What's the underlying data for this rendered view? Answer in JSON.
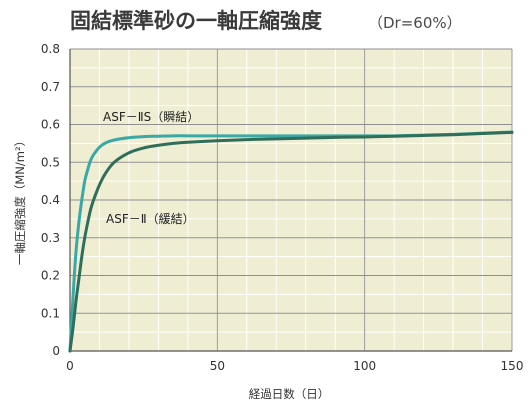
{
  "chart_data": {
    "type": "line",
    "title": "固結標準砂の一軸圧縮強度",
    "subtitle": "（Dr=60%）",
    "xlabel": "経過日数（日）",
    "ylabel": "一軸圧縮強度（MN/m²）",
    "xlim": [
      0,
      150
    ],
    "ylim": [
      0,
      0.8
    ],
    "x_ticks": [
      0,
      50,
      100,
      150
    ],
    "y_ticks": [
      0,
      0.1,
      0.2,
      0.3,
      0.4,
      0.5,
      0.6,
      0.7,
      0.8
    ],
    "x_tick_labels": [
      "0",
      "50",
      "100",
      "150"
    ],
    "y_tick_labels": [
      "0",
      "0.1",
      "0.2",
      "0.3",
      "0.4",
      "0.5",
      "0.6",
      "0.7",
      "0.8"
    ],
    "grid": true,
    "series": [
      {
        "name": "ASF－ⅡS（瞬結）",
        "color": "#3aa8a4",
        "x": [
          0,
          1,
          2,
          3,
          4,
          5,
          6,
          7,
          8,
          10,
          12,
          15,
          20,
          25,
          30,
          35,
          40,
          50,
          60,
          70,
          80,
          90,
          100,
          110,
          120,
          130,
          140,
          150
        ],
        "y": [
          0,
          0.14,
          0.26,
          0.34,
          0.4,
          0.45,
          0.48,
          0.505,
          0.52,
          0.54,
          0.551,
          0.559,
          0.565,
          0.568,
          0.569,
          0.57,
          0.57,
          0.57,
          0.57,
          0.57,
          0.57,
          0.57,
          0.57,
          0.57,
          0.572,
          0.574,
          0.577,
          0.58
        ]
      },
      {
        "name": "ASF－Ⅱ（緩結）",
        "color": "#2f6e5a",
        "x": [
          0,
          1,
          2,
          3,
          4,
          5,
          6,
          7,
          8,
          10,
          12,
          15,
          20,
          25,
          30,
          35,
          40,
          50,
          60,
          70,
          80,
          90,
          100,
          110,
          120,
          130,
          140,
          150
        ],
        "y": [
          0,
          0.06,
          0.13,
          0.19,
          0.25,
          0.3,
          0.34,
          0.375,
          0.4,
          0.44,
          0.47,
          0.5,
          0.525,
          0.538,
          0.545,
          0.55,
          0.553,
          0.557,
          0.56,
          0.562,
          0.564,
          0.566,
          0.567,
          0.569,
          0.571,
          0.573,
          0.576,
          0.579
        ]
      }
    ],
    "annotations": [
      "ASF－ⅡS（瞬結）",
      "ASF－Ⅱ（緩結）"
    ],
    "colors": {
      "plot_background": "#efedd2",
      "grid_major": "#8f8f8f",
      "grid_minor": "#ffffff"
    }
  }
}
